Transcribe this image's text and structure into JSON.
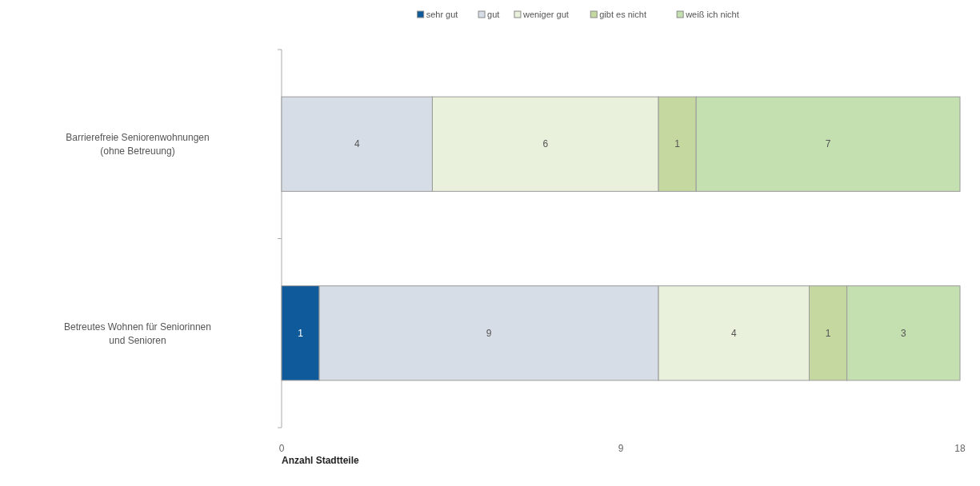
{
  "chart_data": {
    "type": "bar",
    "orientation": "horizontal",
    "stacked": true,
    "xlabel": "Anzahl Stadtteile",
    "categories": [
      "Barrierefreie Seniorenwohnungen\n(ohne Betreuung)",
      "Betreutes Wohnen für Seniorinnen\nund Senioren"
    ],
    "series": [
      {
        "name": "sehr gut",
        "color": "#0f5a9a",
        "values": [
          null,
          1
        ]
      },
      {
        "name": "gut",
        "color": "#d7dde6",
        "values": [
          4,
          9
        ]
      },
      {
        "name": "weniger gut",
        "color": "#e9f1dd",
        "values": [
          6,
          4
        ]
      },
      {
        "name": "gibt es nicht",
        "color": "#c5d8a0",
        "values": [
          1,
          1
        ]
      },
      {
        "name": "weiß ich nicht",
        "color": "#c5e0b0",
        "values": [
          7,
          3
        ]
      }
    ],
    "xlim": [
      0,
      18
    ],
    "xticks": [
      0,
      9,
      18
    ],
    "grid": false,
    "legend": "top",
    "data_labels": true
  }
}
